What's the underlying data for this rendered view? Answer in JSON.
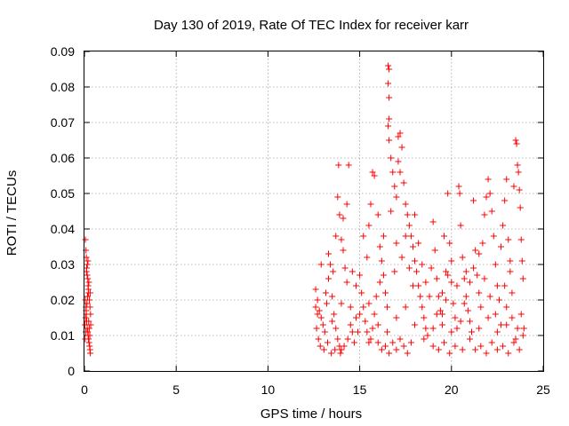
{
  "chart_data": {
    "type": "scatter",
    "title": "Day 130 of 2019, Rate Of TEC Index for receiver karr",
    "xlabel": "GPS time / hours",
    "ylabel": "ROTI / TECUs",
    "xlim": [
      0,
      25
    ],
    "ylim": [
      0,
      0.09
    ],
    "xticks": [
      0,
      5,
      10,
      15,
      20,
      25
    ],
    "xtick_labels": [
      "0",
      "5",
      "10",
      "15",
      "20",
      "25"
    ],
    "yticks": [
      0,
      0.01,
      0.02,
      0.03,
      0.04,
      0.05,
      0.06,
      0.07,
      0.08,
      0.09
    ],
    "ytick_labels": [
      "0",
      "0.01",
      "0.02",
      "0.03",
      "0.04",
      "0.05",
      "0.06",
      "0.07",
      "0.08",
      "0.09"
    ],
    "grid": true,
    "marker": "+",
    "color": "#ff0000",
    "series": [
      {
        "name": "ROTI",
        "points": [
          [
            0.05,
            0.037
          ],
          [
            0.08,
            0.034
          ],
          [
            0.1,
            0.032
          ],
          [
            0.12,
            0.029
          ],
          [
            0.15,
            0.027
          ],
          [
            0.18,
            0.026
          ],
          [
            0.2,
            0.024
          ],
          [
            0.22,
            0.022
          ],
          [
            0.05,
            0.02
          ],
          [
            0.08,
            0.018
          ],
          [
            0.1,
            0.016
          ],
          [
            0.12,
            0.014
          ],
          [
            0.15,
            0.012
          ],
          [
            0.18,
            0.011
          ],
          [
            0.2,
            0.01
          ],
          [
            0.22,
            0.009
          ],
          [
            0.25,
            0.008
          ],
          [
            0.28,
            0.007
          ],
          [
            0.3,
            0.006
          ],
          [
            0.32,
            0.005
          ],
          [
            0.03,
            0.013
          ],
          [
            0.06,
            0.015
          ],
          [
            0.09,
            0.017
          ],
          [
            0.14,
            0.019
          ],
          [
            0.17,
            0.021
          ],
          [
            0.21,
            0.023
          ],
          [
            0.24,
            0.025
          ],
          [
            0.27,
            0.02
          ],
          [
            0.3,
            0.018
          ],
          [
            0.33,
            0.016
          ],
          [
            0.04,
            0.009
          ],
          [
            0.07,
            0.011
          ],
          [
            0.11,
            0.028
          ],
          [
            0.16,
            0.03
          ],
          [
            0.19,
            0.031
          ],
          [
            0.23,
            0.014
          ],
          [
            0.26,
            0.012
          ],
          [
            0.29,
            0.01
          ],
          [
            0.31,
            0.022
          ],
          [
            0.34,
            0.013
          ],
          [
            12.6,
            0.023
          ],
          [
            12.7,
            0.02
          ],
          [
            12.8,
            0.017
          ],
          [
            12.9,
            0.015
          ],
          [
            13.0,
            0.013
          ],
          [
            13.1,
            0.011
          ],
          [
            13.2,
            0.019
          ],
          [
            13.3,
            0.026
          ],
          [
            13.4,
            0.03
          ],
          [
            13.5,
            0.021
          ],
          [
            13.6,
            0.016
          ],
          [
            13.7,
            0.012
          ],
          [
            13.8,
            0.009
          ],
          [
            13.9,
            0.007
          ],
          [
            14.0,
            0.006
          ],
          [
            13.85,
            0.058
          ],
          [
            13.8,
            0.049
          ],
          [
            13.9,
            0.044
          ],
          [
            14.0,
            0.037
          ],
          [
            14.1,
            0.034
          ],
          [
            14.2,
            0.029
          ],
          [
            14.3,
            0.025
          ],
          [
            14.4,
            0.058
          ],
          [
            14.5,
            0.018
          ],
          [
            14.6,
            0.011
          ],
          [
            14.7,
            0.008
          ],
          [
            14.8,
            0.015
          ],
          [
            12.65,
            0.012
          ],
          [
            12.75,
            0.009
          ],
          [
            12.85,
            0.007
          ],
          [
            13.05,
            0.006
          ],
          [
            13.25,
            0.008
          ],
          [
            13.45,
            0.005
          ],
          [
            13.65,
            0.006
          ],
          [
            13.95,
            0.005
          ],
          [
            14.15,
            0.007
          ],
          [
            14.35,
            0.009
          ],
          [
            12.7,
            0.016
          ],
          [
            13.15,
            0.022
          ],
          [
            13.55,
            0.028
          ],
          [
            15.0,
            0.027
          ],
          [
            15.1,
            0.022
          ],
          [
            15.2,
            0.018
          ],
          [
            15.3,
            0.014
          ],
          [
            15.4,
            0.011
          ],
          [
            15.5,
            0.008
          ],
          [
            15.6,
            0.009
          ],
          [
            15.7,
            0.012
          ],
          [
            15.8,
            0.016
          ],
          [
            15.9,
            0.021
          ],
          [
            15.5,
            0.041
          ],
          [
            15.6,
            0.047
          ],
          [
            15.7,
            0.056
          ],
          [
            15.8,
            0.055
          ],
          [
            16.0,
            0.044
          ],
          [
            16.1,
            0.035
          ],
          [
            16.2,
            0.031
          ],
          [
            16.3,
            0.027
          ],
          [
            16.4,
            0.022
          ],
          [
            16.5,
            0.018
          ],
          [
            16.55,
            0.086
          ],
          [
            16.6,
            0.085
          ],
          [
            16.55,
            0.081
          ],
          [
            16.6,
            0.077
          ],
          [
            16.6,
            0.071
          ],
          [
            16.55,
            0.069
          ],
          [
            16.6,
            0.065
          ],
          [
            16.7,
            0.06
          ],
          [
            16.8,
            0.056
          ],
          [
            16.9,
            0.052
          ],
          [
            17.0,
            0.049
          ],
          [
            17.1,
            0.066
          ],
          [
            17.2,
            0.067
          ],
          [
            17.3,
            0.063
          ],
          [
            17.1,
            0.059
          ],
          [
            17.2,
            0.056
          ],
          [
            17.4,
            0.053
          ],
          [
            17.5,
            0.047
          ],
          [
            17.6,
            0.044
          ],
          [
            17.7,
            0.041
          ],
          [
            17.8,
            0.038
          ],
          [
            17.9,
            0.035
          ],
          [
            18.0,
            0.031
          ],
          [
            18.1,
            0.028
          ],
          [
            18.2,
            0.024
          ],
          [
            18.3,
            0.021
          ],
          [
            18.4,
            0.018
          ],
          [
            18.5,
            0.015
          ],
          [
            18.6,
            0.012
          ],
          [
            18.7,
            0.01
          ],
          [
            16.0,
            0.008
          ],
          [
            16.2,
            0.006
          ],
          [
            16.4,
            0.007
          ],
          [
            16.6,
            0.005
          ],
          [
            16.8,
            0.008
          ],
          [
            17.0,
            0.006
          ],
          [
            17.2,
            0.009
          ],
          [
            17.4,
            0.007
          ],
          [
            17.6,
            0.005
          ],
          [
            17.8,
            0.008
          ],
          [
            18.9,
            0.029
          ],
          [
            19.0,
            0.042
          ],
          [
            19.1,
            0.034
          ],
          [
            19.2,
            0.026
          ],
          [
            19.3,
            0.021
          ],
          [
            19.4,
            0.017
          ],
          [
            19.5,
            0.013
          ],
          [
            19.6,
            0.038
          ],
          [
            19.7,
            0.028
          ],
          [
            19.8,
            0.05
          ],
          [
            19.9,
            0.036
          ],
          [
            20.0,
            0.025
          ],
          [
            20.1,
            0.019
          ],
          [
            20.2,
            0.015
          ],
          [
            20.3,
            0.012
          ],
          [
            20.4,
            0.052
          ],
          [
            20.45,
            0.05
          ],
          [
            20.5,
            0.041
          ],
          [
            20.6,
            0.032
          ],
          [
            20.7,
            0.026
          ],
          [
            20.8,
            0.021
          ],
          [
            20.9,
            0.017
          ],
          [
            21.0,
            0.014
          ],
          [
            21.1,
            0.011
          ],
          [
            19.0,
            0.007
          ],
          [
            19.3,
            0.006
          ],
          [
            19.6,
            0.008
          ],
          [
            19.9,
            0.005
          ],
          [
            20.2,
            0.007
          ],
          [
            20.6,
            0.006
          ],
          [
            21.2,
            0.048
          ],
          [
            21.3,
            0.034
          ],
          [
            21.4,
            0.027
          ],
          [
            21.5,
            0.022
          ],
          [
            21.6,
            0.018
          ],
          [
            21.7,
            0.036
          ],
          [
            21.8,
            0.044
          ],
          [
            21.9,
            0.049
          ],
          [
            22.0,
            0.054
          ],
          [
            22.1,
            0.05
          ],
          [
            22.2,
            0.045
          ],
          [
            22.3,
            0.038
          ],
          [
            22.4,
            0.03
          ],
          [
            22.5,
            0.024
          ],
          [
            22.6,
            0.02
          ],
          [
            22.7,
            0.035
          ],
          [
            22.8,
            0.041
          ],
          [
            22.9,
            0.048
          ],
          [
            23.0,
            0.054
          ],
          [
            23.1,
            0.037
          ],
          [
            23.2,
            0.028
          ],
          [
            23.3,
            0.022
          ],
          [
            23.4,
            0.052
          ],
          [
            23.5,
            0.065
          ],
          [
            23.55,
            0.064
          ],
          [
            23.6,
            0.058
          ],
          [
            23.65,
            0.056
          ],
          [
            23.7,
            0.051
          ],
          [
            23.75,
            0.046
          ],
          [
            23.8,
            0.037
          ],
          [
            23.85,
            0.031
          ],
          [
            23.9,
            0.026
          ],
          [
            21.3,
            0.006
          ],
          [
            21.6,
            0.007
          ],
          [
            21.9,
            0.005
          ],
          [
            22.2,
            0.008
          ],
          [
            22.5,
            0.006
          ],
          [
            22.8,
            0.007
          ],
          [
            23.1,
            0.005
          ],
          [
            23.4,
            0.008
          ],
          [
            23.7,
            0.006
          ],
          [
            23.9,
            0.01
          ],
          [
            12.9,
            0.03
          ],
          [
            13.3,
            0.033
          ],
          [
            13.7,
            0.038
          ],
          [
            14.1,
            0.043
          ],
          [
            14.3,
            0.047
          ],
          [
            14.6,
            0.028
          ],
          [
            14.8,
            0.024
          ],
          [
            15.2,
            0.038
          ],
          [
            15.4,
            0.032
          ],
          [
            16.1,
            0.025
          ],
          [
            16.3,
            0.038
          ],
          [
            16.7,
            0.045
          ],
          [
            17.0,
            0.036
          ],
          [
            17.3,
            0.032
          ],
          [
            17.5,
            0.038
          ],
          [
            17.7,
            0.029
          ],
          [
            18.0,
            0.044
          ],
          [
            18.2,
            0.036
          ],
          [
            18.4,
            0.03
          ],
          [
            18.6,
            0.025
          ],
          [
            18.8,
            0.021
          ],
          [
            19.2,
            0.016
          ],
          [
            19.5,
            0.022
          ],
          [
            19.8,
            0.027
          ],
          [
            20.0,
            0.031
          ],
          [
            20.3,
            0.024
          ],
          [
            20.7,
            0.019
          ],
          [
            21.0,
            0.025
          ],
          [
            21.2,
            0.029
          ],
          [
            21.5,
            0.033
          ],
          [
            21.8,
            0.026
          ],
          [
            22.1,
            0.021
          ],
          [
            22.4,
            0.016
          ],
          [
            22.7,
            0.013
          ],
          [
            23.0,
            0.018
          ],
          [
            23.3,
            0.015
          ],
          [
            23.6,
            0.012
          ],
          [
            23.8,
            0.016
          ],
          [
            13.5,
            0.014
          ],
          [
            14.0,
            0.019
          ],
          [
            14.5,
            0.013
          ],
          [
            15.0,
            0.016
          ],
          [
            15.5,
            0.019
          ],
          [
            16.0,
            0.013
          ],
          [
            16.5,
            0.011
          ],
          [
            17.0,
            0.015
          ],
          [
            17.5,
            0.018
          ],
          [
            18.0,
            0.013
          ],
          [
            18.5,
            0.009
          ],
          [
            19.0,
            0.012
          ],
          [
            19.5,
            0.016
          ],
          [
            20.0,
            0.011
          ],
          [
            20.5,
            0.014
          ],
          [
            21.0,
            0.009
          ],
          [
            21.5,
            0.012
          ],
          [
            22.0,
            0.015
          ],
          [
            22.5,
            0.011
          ],
          [
            23.0,
            0.013
          ],
          [
            23.5,
            0.009
          ],
          [
            23.95,
            0.012
          ],
          [
            12.6,
            0.018
          ],
          [
            14.9,
            0.011
          ],
          [
            17.9,
            0.024
          ],
          [
            20.8,
            0.028
          ],
          [
            22.9,
            0.024
          ],
          [
            23.2,
            0.031
          ],
          [
            16.9,
            0.028
          ],
          [
            19.7,
            0.02
          ]
        ]
      }
    ]
  }
}
